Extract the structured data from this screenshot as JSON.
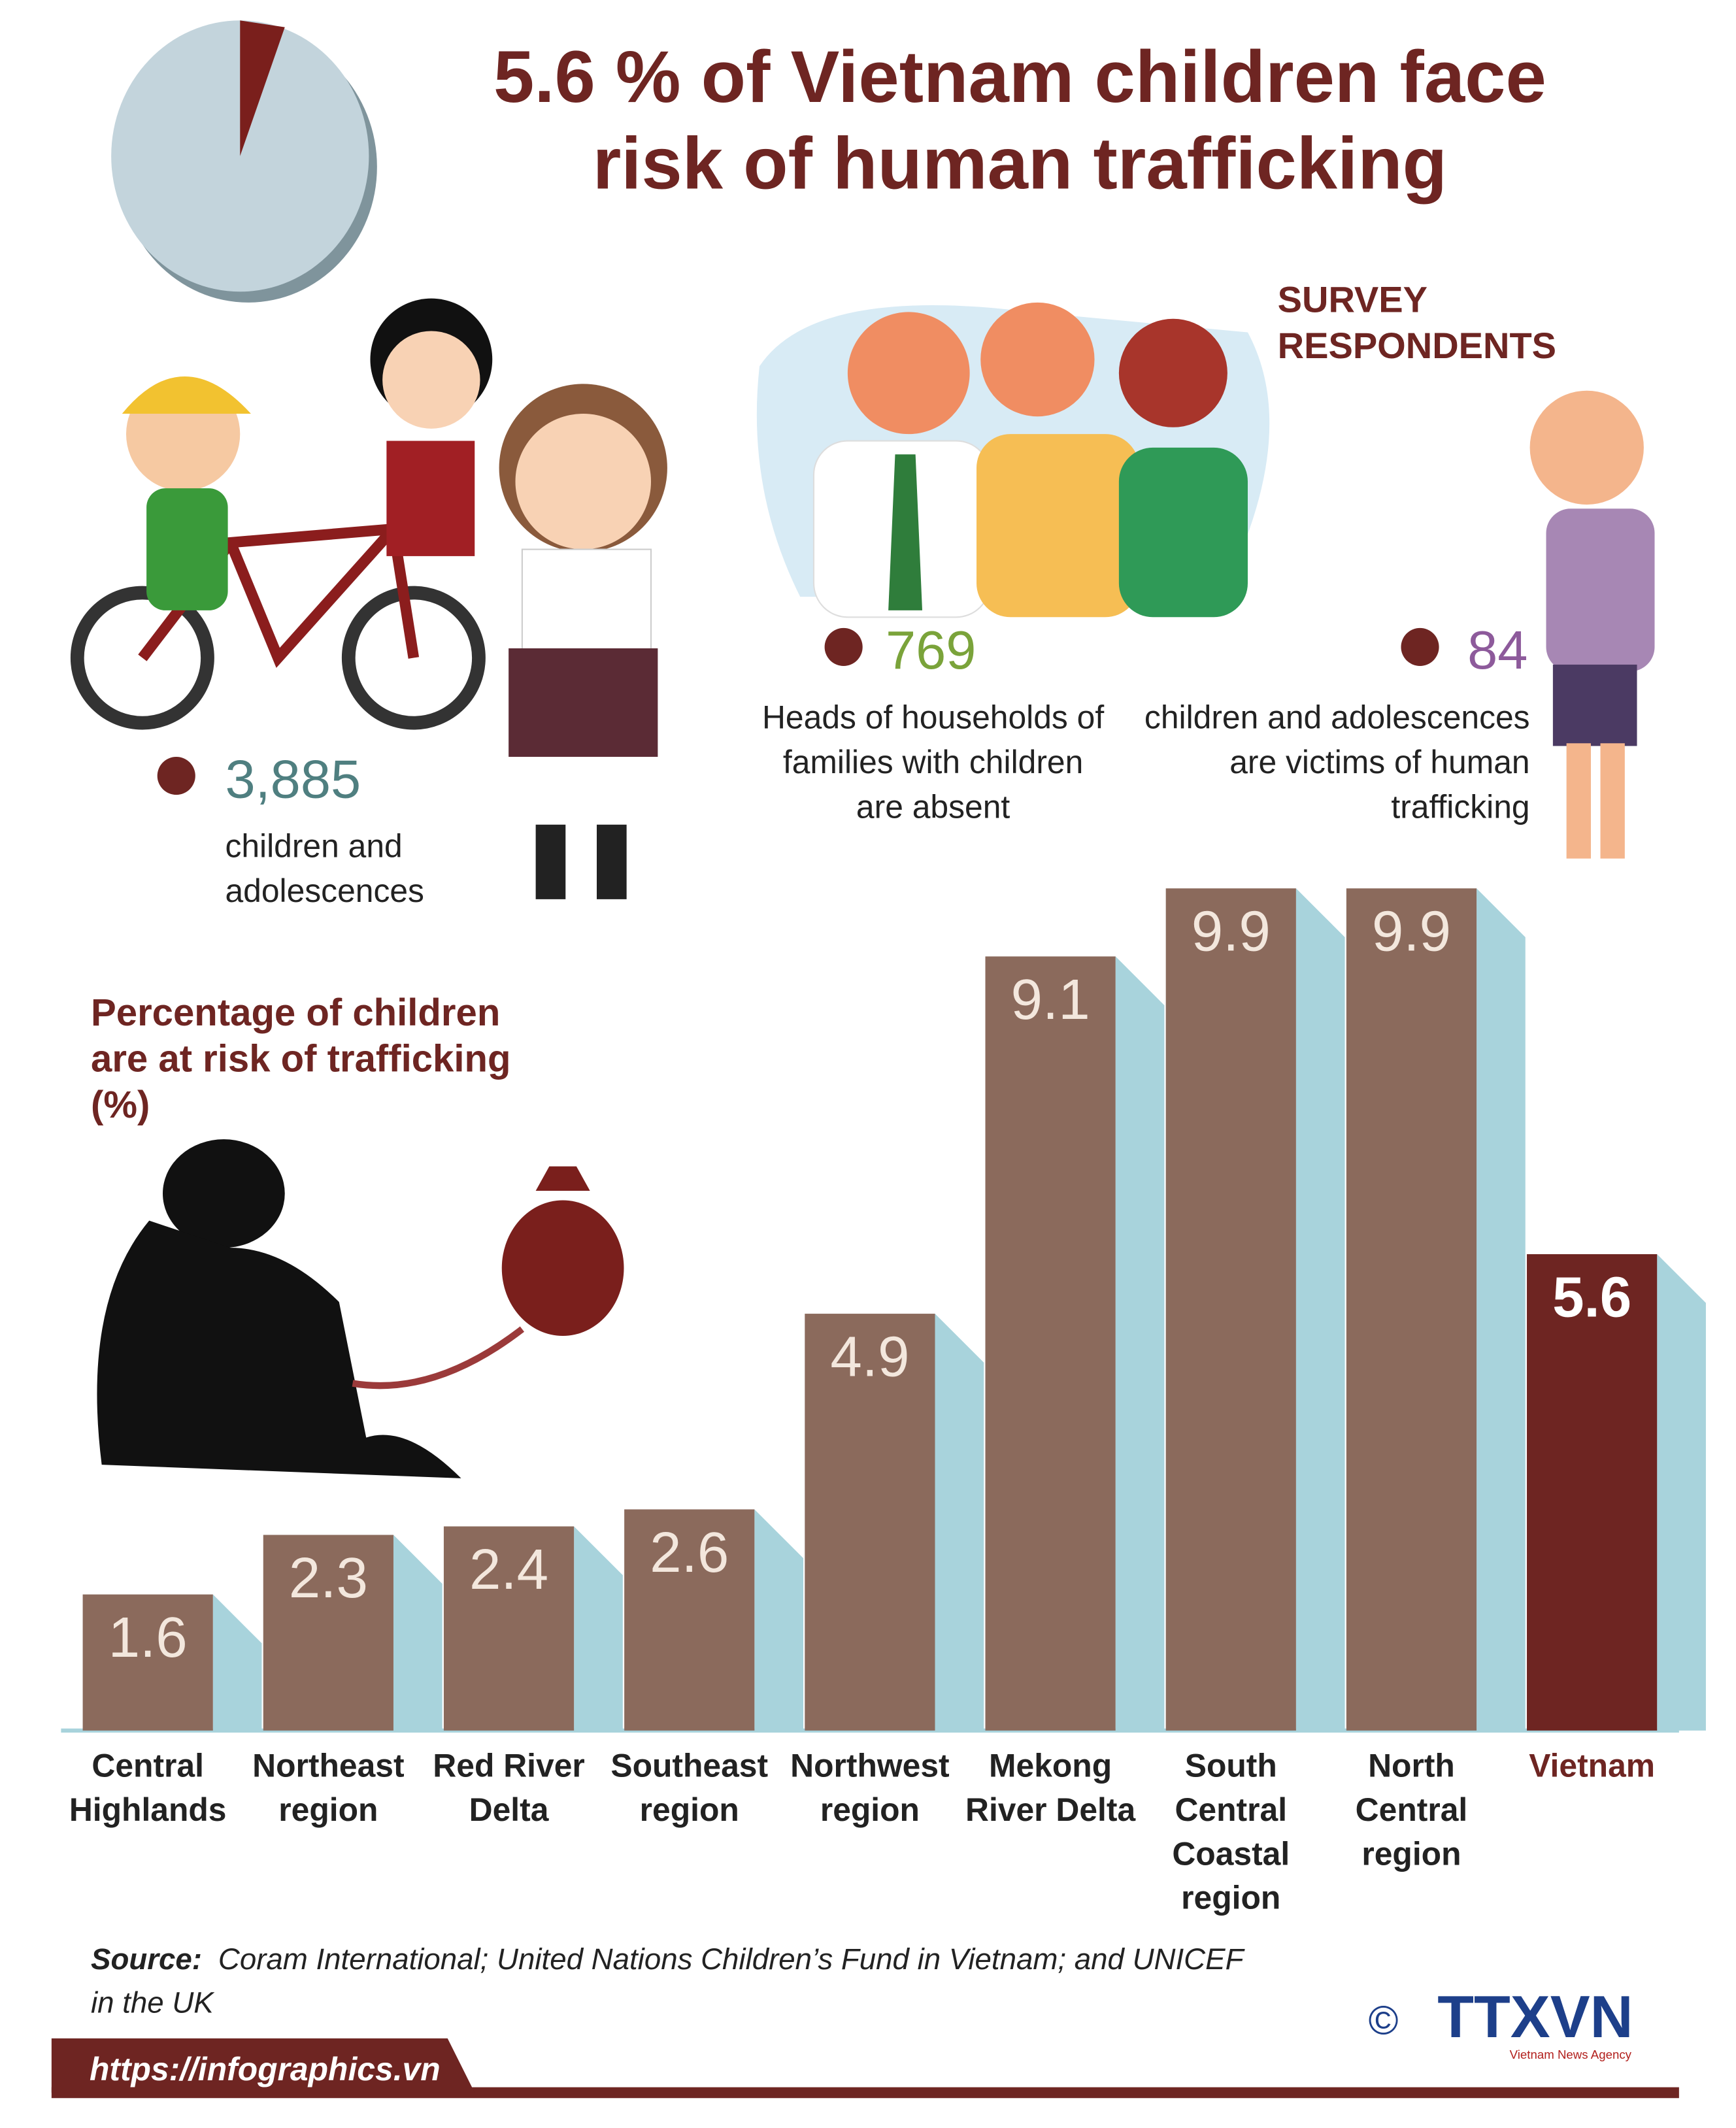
{
  "title": "5.6 % of Vietnam children face\nrisk of human trafficking",
  "survey": {
    "heading": "SURVEY\nRESPONDENTS",
    "items": [
      {
        "number": "3,885",
        "text": "children and\nadolescences",
        "color": "#4f7f80"
      },
      {
        "number": "769",
        "text": "Heads of households of\nfamilies with children\nare absent",
        "color": "#7aa33a"
      },
      {
        "number": "84",
        "text": "children and adolescences\nare victims of human\ntrafficking",
        "color": "#8d5a9b"
      }
    ]
  },
  "chart_data": {
    "type": "bar",
    "title": "Percentage of children\nare at risk of trafficking\n(%)",
    "categories": [
      "Central\nHighlands",
      "Northeast\nregion",
      "Red River\nDelta",
      "Southeast\nregion",
      "Northwest\nregion",
      "Mekong\nRiver Delta",
      "South\nCentral\nCoastal\nregion",
      "North\nCentral\nregion",
      "Vietnam"
    ],
    "values": [
      1.6,
      2.3,
      2.4,
      2.6,
      4.9,
      9.1,
      9.9,
      9.9,
      5.6
    ],
    "color": "#8b6a5c",
    "colors": [
      "#8b6a5c",
      "#8b6a5c",
      "#8b6a5c",
      "#8b6a5c",
      "#8b6a5c",
      "#8b6a5c",
      "#8b6a5c",
      "#8b6a5c",
      "#6e2522"
    ]
  },
  "source": {
    "label": "Source:",
    "text": "Coram International; United Nations Children’s Fund in Vietnam; and UNICEF\nin the UK"
  },
  "footer": {
    "url": "https://infographics.vn",
    "copyright": "©",
    "logo": "TTXVN",
    "agency": "Vietnam News Agency"
  }
}
